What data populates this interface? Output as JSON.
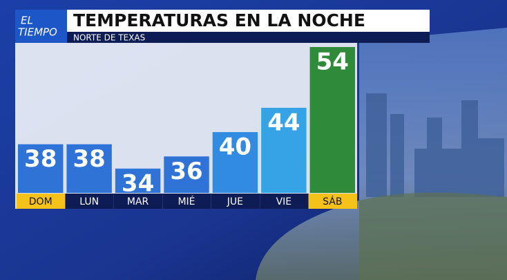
{
  "logo": [
    "EL",
    "TIEMPO"
  ],
  "chart_data": {
    "type": "bar",
    "title": "TEMPERATURAS EN LA NOCHE",
    "subtitle": "NORTE DE TEXAS",
    "categories": [
      "DOM",
      "LUN",
      "MAR",
      "MIÉ",
      "JUE",
      "VIE",
      "SÁB"
    ],
    "values": [
      38,
      38,
      34,
      36,
      40,
      44,
      54
    ],
    "colors": [
      "#2f73d6",
      "#2f73d6",
      "#2f73d6",
      "#2f73d6",
      "#318be0",
      "#35a3e6",
      "#2f8a3a"
    ],
    "label_colors": [
      "#f5c21a",
      "#0e1c55",
      "#0e1c55",
      "#0e1c55",
      "#0e1c55",
      "#0e1c55",
      "#f5c21a"
    ],
    "ylim": [
      30,
      54
    ]
  }
}
